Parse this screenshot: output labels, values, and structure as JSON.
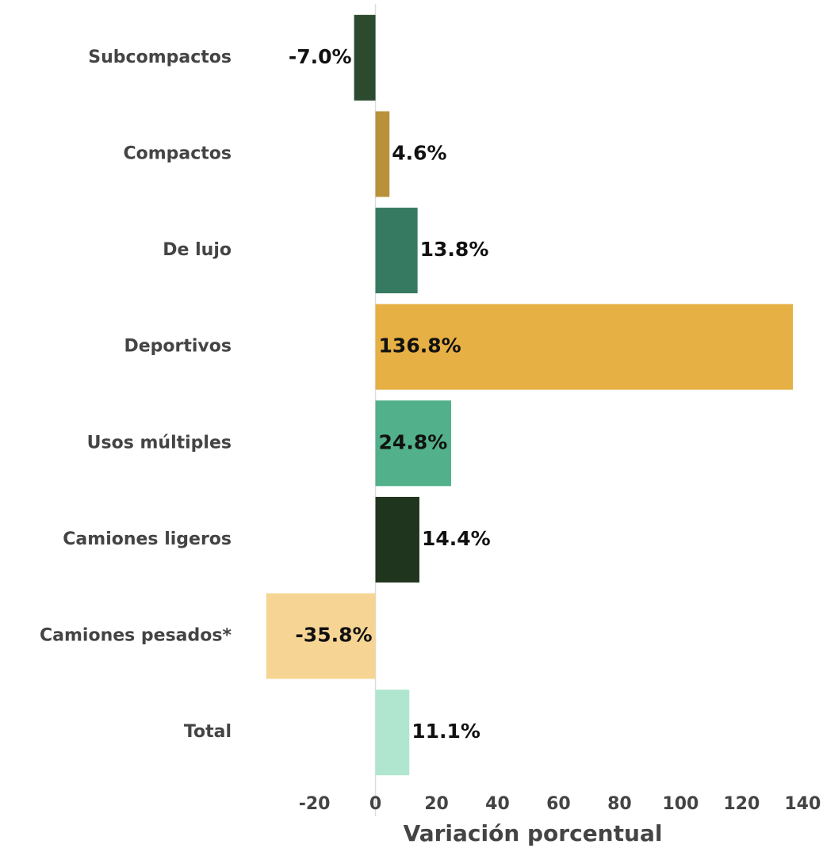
{
  "chart_data": {
    "type": "barh",
    "categories": [
      "Subcompactos",
      "Compactos",
      "De lujo",
      "Deportivos",
      "Usos múltiples",
      "Camiones ligeros",
      "Camiones pesados*",
      "Total"
    ],
    "values": [
      -7.0,
      4.6,
      13.8,
      136.8,
      24.8,
      14.4,
      -35.8,
      11.1
    ],
    "value_labels": [
      "-7.0%",
      "4.6%",
      "13.8%",
      "136.8%",
      "24.8%",
      "14.4%",
      "-35.8%",
      "11.1%"
    ],
    "colors": [
      "#2b4a2e",
      "#b8913a",
      "#367a62",
      "#e6b044",
      "#52b08a",
      "#1f351d",
      "#f6d594",
      "#b0e6cf"
    ],
    "xlabel": "Variación porcentual",
    "xlim": [
      -36,
      142
    ],
    "xticks": [
      -20,
      0,
      20,
      40,
      60,
      80,
      100,
      120,
      140
    ]
  }
}
